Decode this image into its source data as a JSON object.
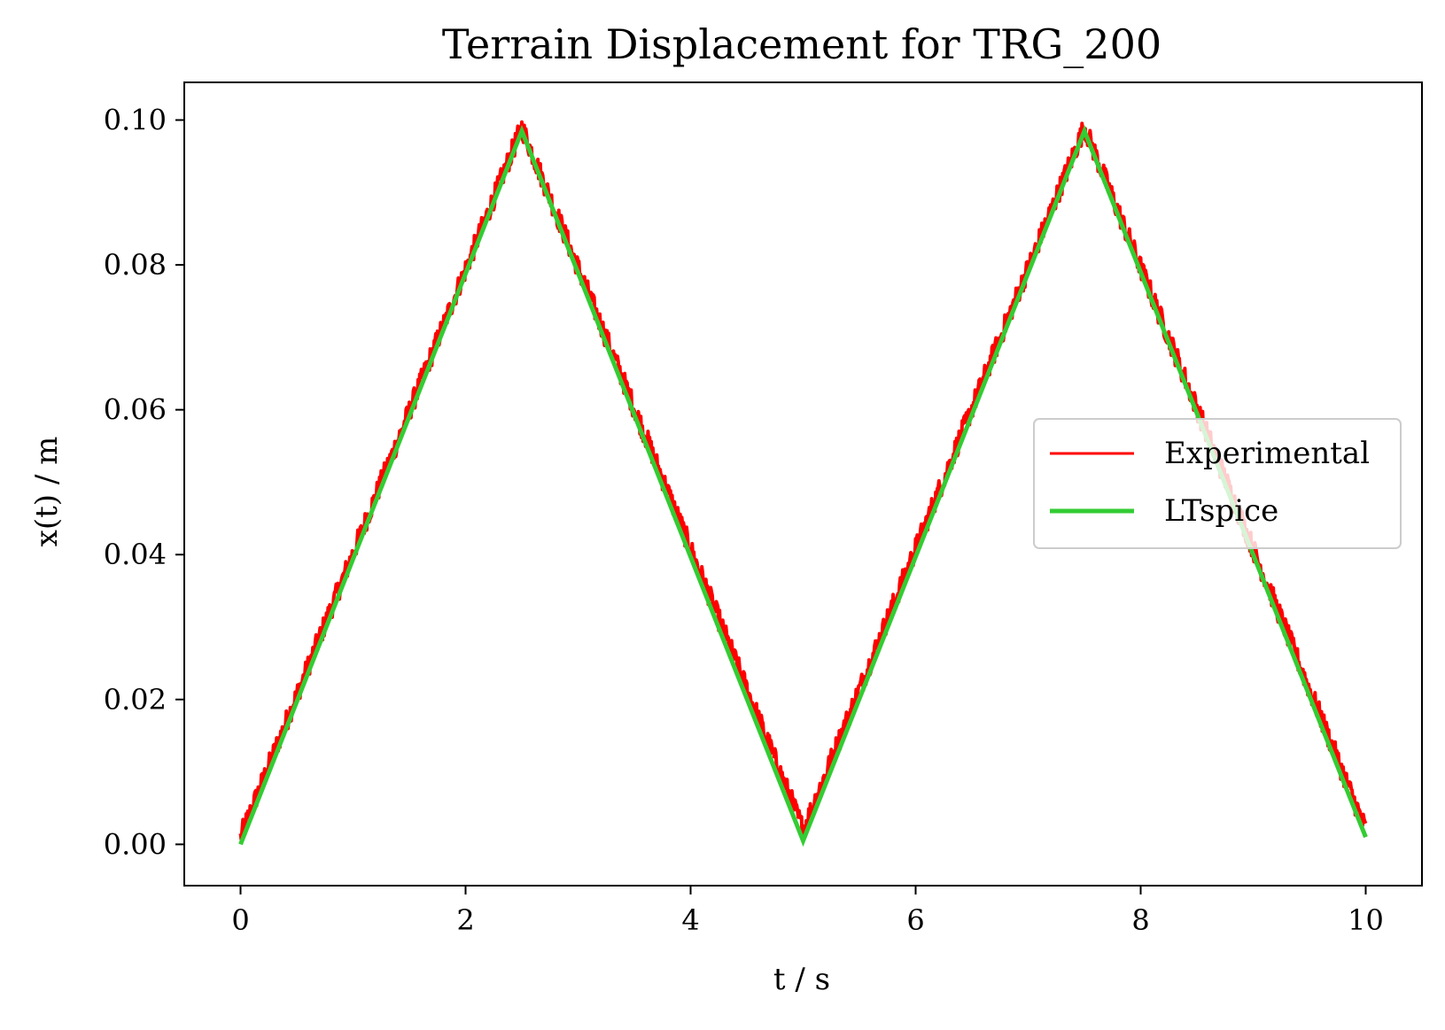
{
  "chart_data": {
    "type": "line",
    "title": "Terrain Displacement for TRG_200",
    "xlabel": "t / s",
    "ylabel": "x(t) / m",
    "xlim": [
      -0.5,
      10.5
    ],
    "ylim": [
      -0.0057,
      0.1052
    ],
    "xticks": [
      0,
      2,
      4,
      6,
      8,
      10
    ],
    "xtick_labels": [
      "0",
      "2",
      "4",
      "6",
      "8",
      "10"
    ],
    "yticks": [
      0.0,
      0.02,
      0.04,
      0.06,
      0.08,
      0.1
    ],
    "ytick_labels": [
      "0.00",
      "0.02",
      "0.04",
      "0.06",
      "0.08",
      "0.10"
    ],
    "grid": false,
    "legend_position": "center-right",
    "series": [
      {
        "name": "Experimental",
        "color": "#ff0000",
        "style": "noisy-band",
        "x": [
          0,
          2.5,
          5.0,
          7.5,
          10.0
        ],
        "y": [
          0.001,
          0.099,
          0.002,
          0.099,
          0.002
        ]
      },
      {
        "name": "LTspice",
        "color": "#33cc33",
        "style": "line",
        "x": [
          0,
          2.5,
          5.0,
          7.5,
          10.0
        ],
        "y": [
          0.0,
          0.0985,
          0.0005,
          0.0985,
          0.001
        ]
      }
    ]
  }
}
